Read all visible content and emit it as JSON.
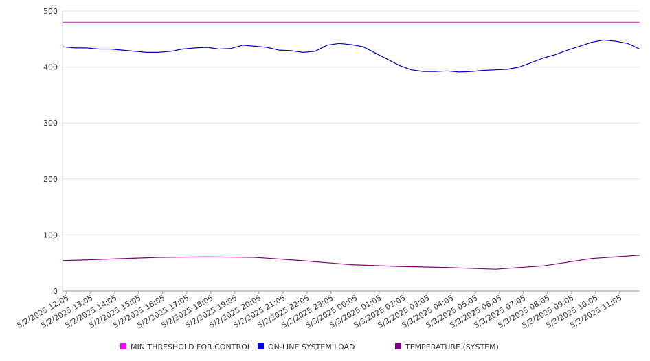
{
  "chart_data": {
    "type": "line",
    "title": "",
    "xlabel": "",
    "ylabel": "",
    "ylim": [
      0,
      500
    ],
    "yticks": [
      0,
      100,
      200,
      300,
      400,
      500
    ],
    "grid": true,
    "legend_position": "bottom",
    "x_start": "5/2/2025 11:55",
    "x_end": "5/3/2025 11:55",
    "xticks": [
      "5/2/2025 12:05",
      "5/2/2025 13:05",
      "5/2/2025 14:05",
      "5/2/2025 15:05",
      "5/2/2025 16:05",
      "5/2/2025 17:05",
      "5/2/2025 18:05",
      "5/2/2025 19:05",
      "5/2/2025 20:05",
      "5/2/2025 21:05",
      "5/2/2025 22:05",
      "5/2/2025 23:05",
      "5/3/2025 00:05",
      "5/3/2025 01:05",
      "5/3/2025 02:05",
      "5/3/2025 03:05",
      "5/3/2025 04:05",
      "5/3/2025 05:05",
      "5/3/2025 06:05",
      "5/3/2025 07:05",
      "5/3/2025 08:05",
      "5/3/2025 09:05",
      "5/3/2025 10:05",
      "5/3/2025 11:05"
    ],
    "series": [
      {
        "name": "MIN THRESHOLD FOR CONTROL",
        "color": "#cc33cc",
        "legend_color": "#ff00ff",
        "x": [
          "5/2/2025 11:55",
          "5/3/2025 11:55"
        ],
        "values": [
          480,
          480
        ]
      },
      {
        "name": "ON-LINE SYSTEM LOAD",
        "color": "#0000cc",
        "legend_color": "#0000ff",
        "x": [
          "5/2/2025 11:55",
          "5/2/2025 12:25",
          "5/2/2025 12:55",
          "5/2/2025 13:25",
          "5/2/2025 13:55",
          "5/2/2025 14:25",
          "5/2/2025 14:55",
          "5/2/2025 15:25",
          "5/2/2025 15:55",
          "5/2/2025 16:25",
          "5/2/2025 16:55",
          "5/2/2025 17:25",
          "5/2/2025 17:55",
          "5/2/2025 18:25",
          "5/2/2025 18:55",
          "5/2/2025 19:25",
          "5/2/2025 19:55",
          "5/2/2025 20:25",
          "5/2/2025 20:55",
          "5/2/2025 21:25",
          "5/2/2025 21:55",
          "5/2/2025 22:25",
          "5/2/2025 22:55",
          "5/2/2025 23:25",
          "5/2/2025 23:55",
          "5/3/2025 00:25",
          "5/3/2025 00:55",
          "5/3/2025 01:25",
          "5/3/2025 01:55",
          "5/3/2025 02:25",
          "5/3/2025 02:55",
          "5/3/2025 03:25",
          "5/3/2025 03:55",
          "5/3/2025 04:25",
          "5/3/2025 04:55",
          "5/3/2025 05:25",
          "5/3/2025 05:55",
          "5/3/2025 06:25",
          "5/3/2025 06:55",
          "5/3/2025 07:25",
          "5/3/2025 07:55",
          "5/3/2025 08:25",
          "5/3/2025 08:55",
          "5/3/2025 09:25",
          "5/3/2025 09:55",
          "5/3/2025 10:25",
          "5/3/2025 10:55",
          "5/3/2025 11:25",
          "5/3/2025 11:55"
        ],
        "values": [
          436,
          434,
          434,
          432,
          432,
          430,
          428,
          426,
          426,
          428,
          432,
          434,
          435,
          432,
          433,
          439,
          437,
          435,
          430,
          429,
          426,
          428,
          439,
          442,
          440,
          436,
          425,
          414,
          403,
          395,
          392,
          392,
          393,
          391,
          392,
          394,
          395,
          396,
          400,
          408,
          416,
          422,
          430,
          437,
          444,
          448,
          446,
          442,
          432
        ]
      },
      {
        "name": "TEMPERATURE (SYSTEM)",
        "color": "#800080",
        "legend_color": "#800080",
        "x": [
          "5/2/2025 11:55",
          "5/2/2025 13:55",
          "5/2/2025 15:55",
          "5/2/2025 17:55",
          "5/2/2025 19:55",
          "5/2/2025 21:55",
          "5/2/2025 23:55",
          "5/3/2025 01:55",
          "5/3/2025 03:55",
          "5/3/2025 05:55",
          "5/3/2025 07:55",
          "5/3/2025 09:55",
          "5/3/2025 11:55"
        ],
        "values": [
          54,
          57,
          60,
          61,
          60,
          54,
          47,
          44,
          42,
          39,
          45,
          58,
          64
        ]
      }
    ]
  }
}
